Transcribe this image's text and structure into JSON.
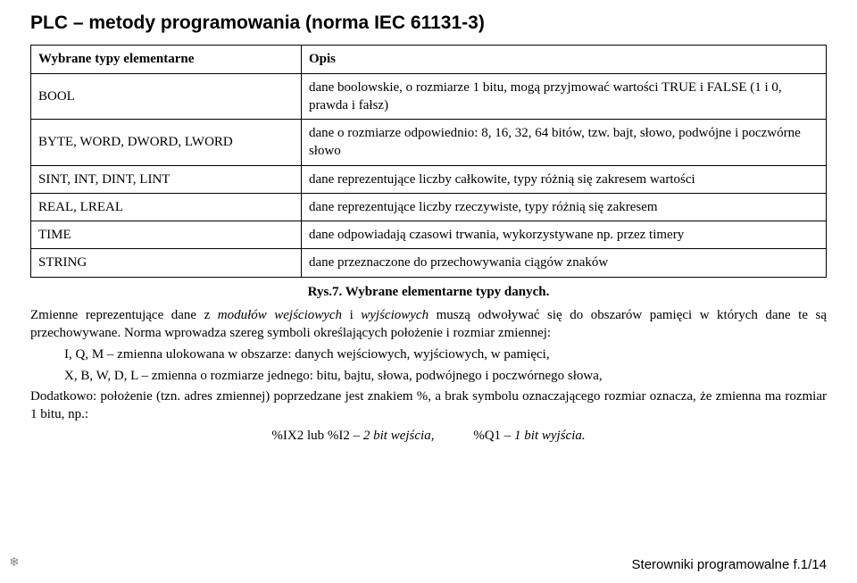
{
  "title": "PLC – metody programowania (norma IEC 61131-3)",
  "table": {
    "rows": [
      {
        "left": "Wybrane typy elementarne",
        "right": "Opis",
        "header": true
      },
      {
        "left": "BOOL",
        "right": "dane boolowskie, o rozmiarze 1 bitu, mogą przyjmować wartości TRUE i FALSE (1 i 0, prawda i fałsz)"
      },
      {
        "left": "BYTE, WORD, DWORD, LWORD",
        "right": "dane o rozmiarze odpowiednio: 8, 16, 32, 64 bitów, tzw. bajt, słowo, podwójne i poczwórne słowo"
      },
      {
        "left": "SINT, INT, DINT, LINT",
        "right": "dane reprezentujące liczby całkowite,  typy różnią się zakresem wartości"
      },
      {
        "left": "REAL, LREAL",
        "right": "dane reprezentujące liczby rzeczywiste,  typy różnią się zakresem"
      },
      {
        "left": "TIME",
        "right": "dane odpowiadają czasowi trwania, wykorzystywane np. przez timery"
      },
      {
        "left": "STRING",
        "right": "dane przeznaczone do przechowywania ciągów znaków"
      }
    ]
  },
  "caption": "Rys.7. Wybrane elementarne typy danych.",
  "para1_a": "Zmienne reprezentujące dane z ",
  "para1_em1": "modułów wejściowych",
  "para1_b": " i ",
  "para1_em2": "wyjściowych",
  "para1_c": " muszą odwoływać się do obszarów pamięci w których dane te są przechowywane. Norma wprowadza szereg symboli określających położenie i rozmiar zmiennej:",
  "bullet1": "I, Q, M – zmienna ulokowana w obszarze: danych wejściowych, wyjściowych, w pamięci,",
  "bullet2": "X, B, W, D, L – zmienna o rozmiarze jednego: bitu, bajtu, słowa, podwójnego i poczwórnego słowa,",
  "para2": "Dodatkowo: położenie (tzn. adres zmiennej) poprzedzane jest znakiem %, a brak symbolu oznaczającego rozmiar oznacza, że zmienna ma rozmiar 1 bitu, np.:",
  "ex1_a": "%IX2 lub %I2 ",
  "ex1_b": "– 2 bit wejścia,",
  "ex2_a": "%Q1 ",
  "ex2_b": "– 1 bit wyjścia.",
  "footer": "Sterowniki programowalne f.1/14",
  "footer_icon": "❄"
}
